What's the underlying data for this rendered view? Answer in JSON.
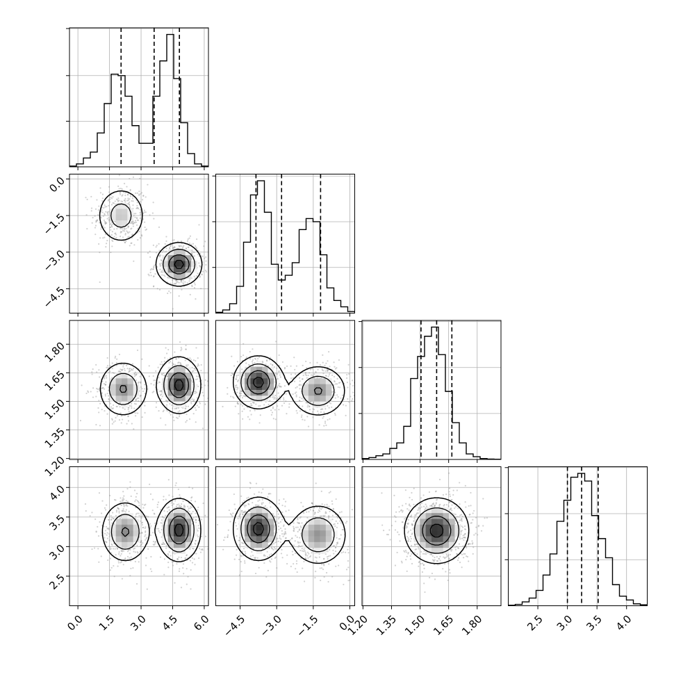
{
  "chart_data": {
    "type": "corner",
    "grid": true,
    "quantile_lines": "dashed",
    "parameters": [
      {
        "ticks": [
          0.0,
          1.5,
          3.0,
          4.5,
          6.0
        ],
        "tick_labels": [
          "0.0",
          "1.5",
          "3.0",
          "4.5",
          "6.0"
        ],
        "range": [
          -0.4,
          6.2
        ],
        "quantiles": [
          2.05,
          3.62,
          4.82
        ],
        "histogram": {
          "bin_edges": [
            -0.4,
            -0.07,
            0.26,
            0.59,
            0.92,
            1.25,
            1.58,
            1.91,
            2.24,
            2.57,
            2.9,
            3.23,
            3.56,
            3.89,
            4.22,
            4.55,
            4.88,
            5.21,
            5.54,
            5.87,
            6.2
          ],
          "counts": [
            0.5,
            2,
            6,
            10,
            23,
            43,
            63,
            62,
            48,
            28,
            16,
            16,
            48,
            72,
            90,
            60,
            30,
            9,
            2,
            0.5
          ]
        }
      },
      {
        "ticks": [
          -4.5,
          -3.0,
          -1.5,
          0.0
        ],
        "tick_labels": [
          "−4.5",
          "−3.0",
          "−1.5",
          "0.0"
        ],
        "range": [
          -5.5,
          0.2
        ],
        "quantiles": [
          -3.85,
          -2.8,
          -1.2
        ],
        "histogram": {
          "bin_edges": [
            -5.5,
            -5.215,
            -4.93,
            -4.645,
            -4.36,
            -4.075,
            -3.79,
            -3.505,
            -3.22,
            -2.935,
            -2.65,
            -2.365,
            -2.08,
            -1.795,
            -1.51,
            -1.225,
            -0.94,
            -0.655,
            -0.37,
            -0.085,
            0.2
          ],
          "counts": [
            0.5,
            2,
            6,
            17,
            45,
            75,
            84,
            64,
            31,
            21,
            24,
            32,
            53,
            60,
            58,
            37,
            16,
            8,
            4,
            1
          ]
        }
      },
      {
        "ticks": [
          1.2,
          1.35,
          1.5,
          1.65,
          1.8
        ],
        "tick_labels": [
          "1.20",
          "1.35",
          "1.50",
          "1.65",
          "1.80"
        ],
        "range": [
          1.195,
          1.925
        ],
        "quantiles": [
          1.505,
          1.587,
          1.667
        ],
        "histogram": {
          "bin_edges": [
            1.195,
            1.2315,
            1.268,
            1.3045,
            1.341,
            1.3775,
            1.414,
            1.4505,
            1.487,
            1.5235,
            1.56,
            1.5965,
            1.633,
            1.6695,
            1.706,
            1.7425,
            1.779,
            1.8155,
            1.852,
            1.8885,
            1.925
          ],
          "counts": [
            0.5,
            1,
            2,
            3,
            6,
            9,
            18,
            44,
            56,
            67,
            72,
            57,
            37,
            20,
            9,
            3,
            1.5,
            0.5,
            0.2,
            0.1
          ]
        }
      },
      {
        "ticks": [
          2.5,
          3.0,
          3.5,
          4.0
        ],
        "tick_labels": [
          "2.5",
          "3.0",
          "3.5",
          "4.0"
        ],
        "range": [
          2.0,
          4.35
        ],
        "quantiles": [
          3.0,
          3.24,
          3.52
        ],
        "histogram": {
          "bin_edges": [
            2.0,
            2.1175,
            2.235,
            2.3525,
            2.47,
            2.5875,
            2.705,
            2.8225,
            2.94,
            3.0575,
            3.175,
            3.2925,
            3.41,
            3.5275,
            3.645,
            3.7625,
            3.88,
            3.9975,
            4.115,
            4.2325,
            4.35
          ],
          "counts": [
            0.3,
            0.7,
            2,
            4,
            8,
            16,
            27,
            44,
            55,
            67,
            69,
            65,
            47,
            35,
            25,
            11,
            5,
            3,
            1,
            0.5
          ]
        }
      }
    ],
    "pair_modes": {
      "1,0": [
        {
          "center": [
            2.05,
            -1.5
          ],
          "sigma": [
            0.62,
            0.62
          ],
          "weight": 0.45
        },
        {
          "center": [
            4.8,
            -3.5
          ],
          "sigma": [
            0.55,
            0.45
          ],
          "weight": 0.55
        }
      ],
      "2,0": [
        {
          "center": [
            2.15,
            1.565
          ],
          "sigma": [
            0.6,
            0.075
          ],
          "weight": 0.45
        },
        {
          "center": [
            4.8,
            1.585
          ],
          "sigma": [
            0.52,
            0.075
          ],
          "weight": 0.55
        }
      ],
      "2,1": [
        {
          "center": [
            -3.75,
            1.6
          ],
          "sigma": [
            0.52,
            0.07
          ],
          "weight": 0.55
        },
        {
          "center": [
            -1.3,
            1.555
          ],
          "sigma": [
            0.6,
            0.07
          ],
          "weight": 0.45
        }
      ],
      "3,0": [
        {
          "center": [
            2.25,
            3.25
          ],
          "sigma": [
            0.6,
            0.27
          ],
          "weight": 0.45
        },
        {
          "center": [
            4.8,
            3.28
          ],
          "sigma": [
            0.52,
            0.27
          ],
          "weight": 0.55
        }
      ],
      "3,1": [
        {
          "center": [
            -3.75,
            3.3
          ],
          "sigma": [
            0.52,
            0.27
          ],
          "weight": 0.55
        },
        {
          "center": [
            -1.3,
            3.2
          ],
          "sigma": [
            0.62,
            0.27
          ],
          "weight": 0.45
        }
      ],
      "3,2": [
        {
          "center": [
            1.587,
            3.27
          ],
          "sigma": [
            0.085,
            0.28
          ],
          "weight": 1.0
        }
      ]
    }
  }
}
